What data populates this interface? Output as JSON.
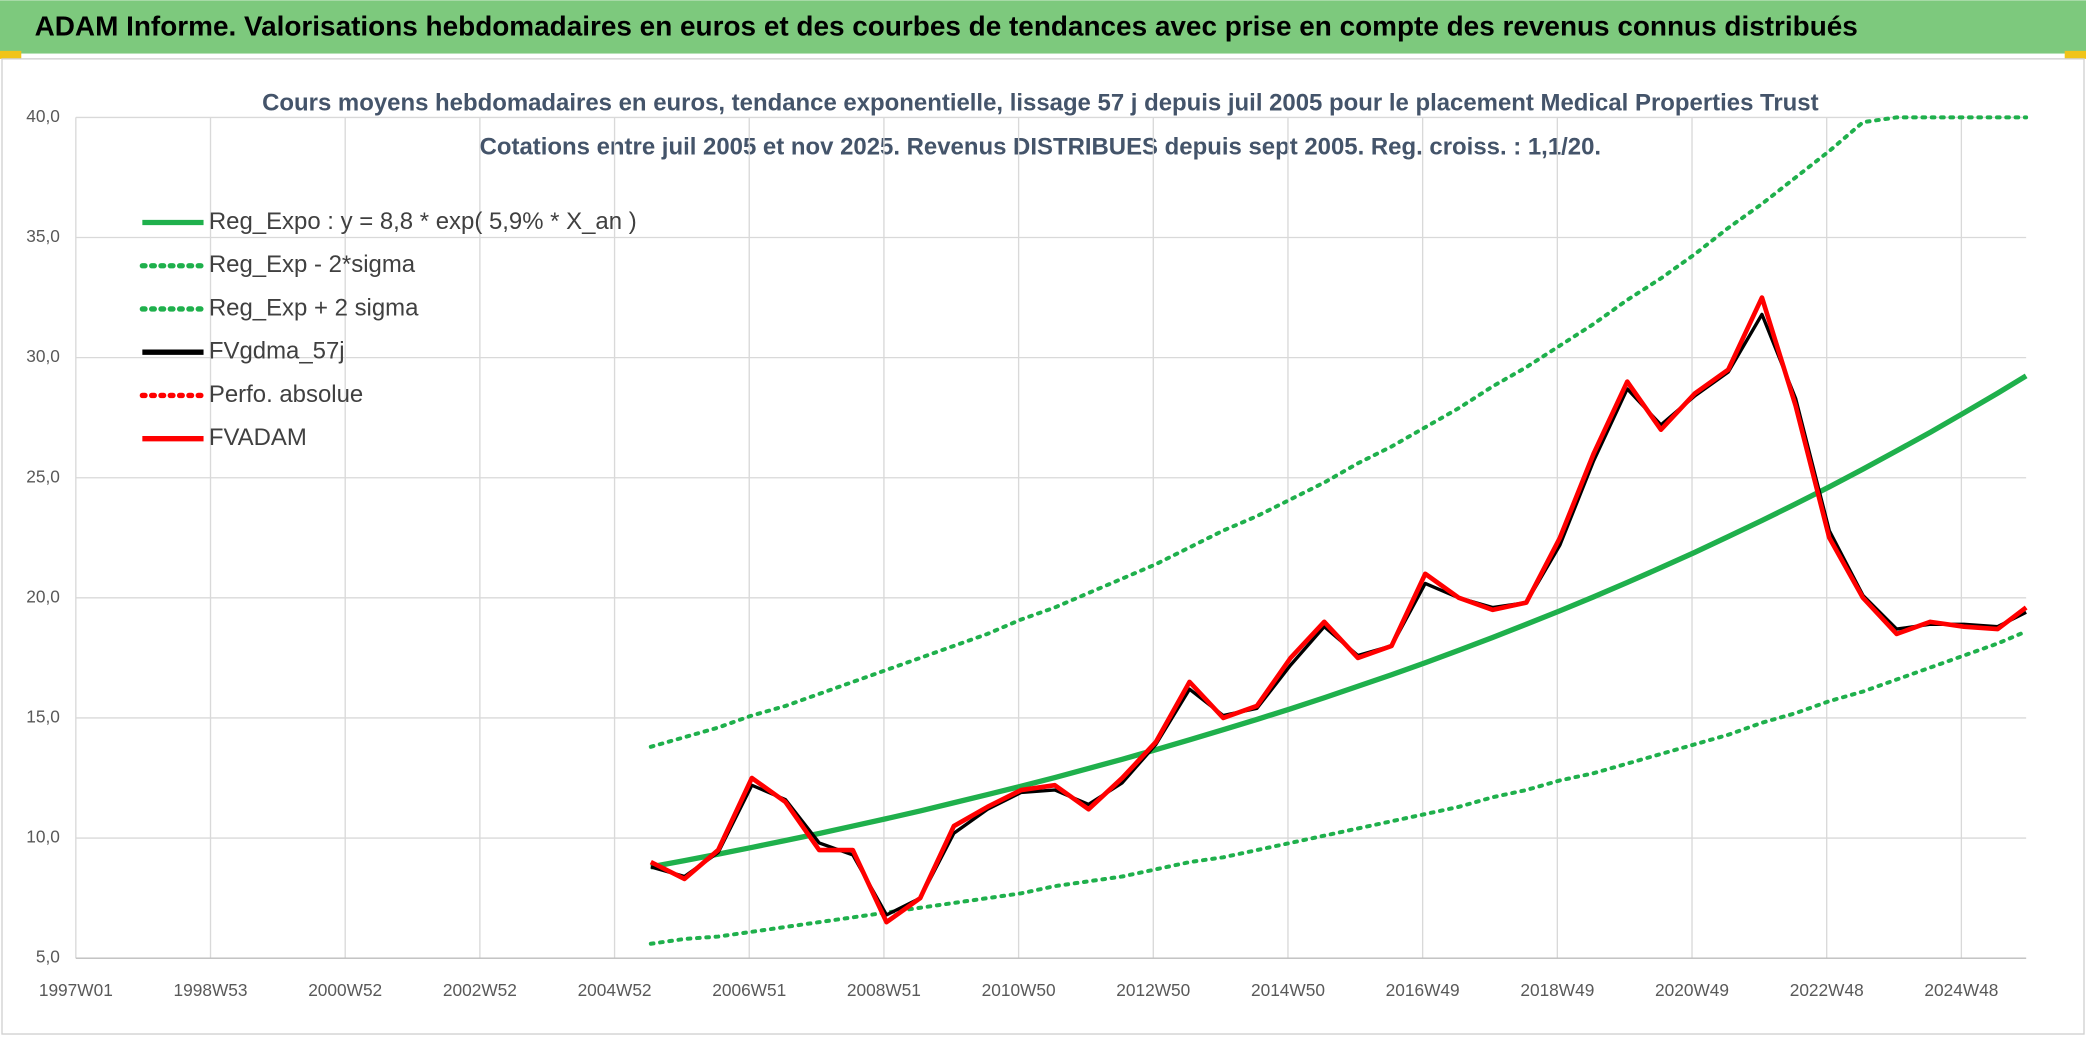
{
  "header": {
    "title": "ADAM Informe. Valorisations hebdomadaires en euros et des courbes de tendances avec prise en compte des revenus connus distribués"
  },
  "chart_data": {
    "type": "line",
    "title": "Cours moyens hebdomadaires en euros, tendance exponentielle, lissage 57 j depuis juil 2005 pour le placement Medical Properties Trust",
    "subtitle": "Cotations entre juil 2005 et nov 2025. Revenus DISTRIBUES depuis sept 2005. Reg. croiss. : 1,1/20.",
    "x": [
      444,
      470,
      496,
      522,
      548,
      574,
      600,
      626,
      652,
      678,
      704,
      730,
      756,
      782,
      808,
      834,
      860,
      886,
      912,
      938,
      964,
      990,
      1016,
      1042,
      1068,
      1094,
      1120,
      1146,
      1172,
      1198,
      1224,
      1250,
      1276,
      1302,
      1328,
      1354,
      1380,
      1406,
      1432,
      1458,
      1484,
      1506
    ],
    "xlim": [
      0,
      1506
    ],
    "xticks": [
      {
        "value": 0,
        "label": "1997W01"
      },
      {
        "value": 104,
        "label": "1998W53"
      },
      {
        "value": 208,
        "label": "2000W52"
      },
      {
        "value": 312,
        "label": "2002W52"
      },
      {
        "value": 416,
        "label": "2004W52"
      },
      {
        "value": 520,
        "label": "2006W51"
      },
      {
        "value": 624,
        "label": "2008W51"
      },
      {
        "value": 728,
        "label": "2010W50"
      },
      {
        "value": 832,
        "label": "2012W50"
      },
      {
        "value": 936,
        "label": "2014W50"
      },
      {
        "value": 1040,
        "label": "2016W49"
      },
      {
        "value": 1144,
        "label": "2018W49"
      },
      {
        "value": 1248,
        "label": "2020W49"
      },
      {
        "value": 1352,
        "label": "2022W48"
      },
      {
        "value": 1456,
        "label": "2024W48"
      }
    ],
    "ylim": [
      5,
      40
    ],
    "yticks": [
      {
        "value": 5,
        "label": "5,0"
      },
      {
        "value": 10,
        "label": "10,0"
      },
      {
        "value": 15,
        "label": "15,0"
      },
      {
        "value": 20,
        "label": "20,0"
      },
      {
        "value": 25,
        "label": "25,0"
      },
      {
        "value": 30,
        "label": "30,0"
      },
      {
        "value": 35,
        "label": "35,0"
      },
      {
        "value": 40,
        "label": "40,0"
      }
    ],
    "grid": true,
    "legend": "upper left",
    "series": [
      {
        "name": "Reg_Expo : y = 8,8 * exp( 5,9% *  X_an )",
        "color": "#1fb04c",
        "line_style": "solid",
        "values": [
          8.8,
          9.06,
          9.33,
          9.61,
          9.9,
          10.19,
          10.5,
          10.81,
          11.13,
          11.47,
          11.81,
          12.16,
          12.52,
          12.9,
          13.28,
          13.68,
          14.09,
          14.51,
          14.94,
          15.38,
          15.84,
          16.32,
          16.8,
          17.3,
          17.82,
          18.35,
          18.9,
          19.46,
          20.04,
          20.64,
          21.26,
          21.89,
          22.55,
          23.22,
          23.91,
          24.62,
          25.36,
          26.12,
          26.89,
          27.7,
          28.52,
          29.24
        ]
      },
      {
        "name": "Reg_Exp - 2*sigma",
        "color": "#1fb04c",
        "line_style": "dotted",
        "values": [
          5.6,
          5.8,
          5.9,
          6.1,
          6.3,
          6.5,
          6.7,
          6.9,
          7.1,
          7.3,
          7.5,
          7.7,
          8.0,
          8.2,
          8.4,
          8.7,
          9.0,
          9.2,
          9.5,
          9.8,
          10.1,
          10.4,
          10.7,
          11.0,
          11.3,
          11.7,
          12.0,
          12.4,
          12.7,
          13.1,
          13.5,
          13.9,
          14.3,
          14.8,
          15.2,
          15.7,
          16.1,
          16.6,
          17.1,
          17.6,
          18.1,
          18.6
        ]
      },
      {
        "name": "Reg_Exp + 2 sigma",
        "color": "#1fb04c",
        "line_style": "dotted",
        "values": [
          13.8,
          14.2,
          14.6,
          15.1,
          15.5,
          16.0,
          16.5,
          17.0,
          17.5,
          18.0,
          18.5,
          19.1,
          19.6,
          20.2,
          20.8,
          21.4,
          22.1,
          22.8,
          23.4,
          24.1,
          24.8,
          25.6,
          26.3,
          27.1,
          27.9,
          28.8,
          29.6,
          30.5,
          31.4,
          32.4,
          33.3,
          34.3,
          35.4,
          36.4,
          37.5,
          38.6,
          39.8,
          40,
          40,
          40,
          40,
          40
        ]
      },
      {
        "name": "FVgdma_57j",
        "color": "#000000",
        "line_style": "solid",
        "values": [
          8.8,
          8.4,
          9.4,
          12.2,
          11.6,
          9.8,
          9.3,
          6.8,
          7.5,
          10.2,
          11.2,
          11.9,
          12.0,
          11.4,
          12.3,
          13.9,
          16.2,
          15.1,
          15.4,
          17.2,
          18.8,
          17.6,
          18.0,
          20.6,
          20.0,
          19.6,
          19.8,
          22.2,
          25.7,
          28.7,
          27.2,
          28.4,
          29.4,
          31.8,
          28.3,
          22.8,
          20.1,
          18.7,
          18.9,
          18.9,
          18.8,
          19.4
        ]
      },
      {
        "name": "Perfo. absolue",
        "color": "#ff0000",
        "line_style": "dotted",
        "values": [
          null,
          null,
          null,
          null,
          null,
          null,
          null,
          null,
          null,
          null,
          null,
          null,
          null,
          null,
          null,
          null,
          null,
          null,
          null,
          null,
          null,
          null,
          null,
          null,
          null,
          null,
          null,
          null,
          null,
          null,
          null,
          null,
          null,
          null,
          null,
          null,
          null,
          null,
          null,
          null,
          null,
          null
        ]
      },
      {
        "name": "FVADAM",
        "color": "#ff0000",
        "line_style": "solid",
        "values": [
          9.0,
          8.3,
          9.5,
          12.5,
          11.5,
          9.5,
          9.5,
          6.5,
          7.5,
          10.5,
          11.3,
          12.0,
          12.2,
          11.2,
          12.5,
          14.0,
          16.5,
          15.0,
          15.5,
          17.5,
          19.0,
          17.5,
          18.0,
          21.0,
          20.0,
          19.5,
          19.8,
          22.5,
          26.0,
          29.0,
          27.0,
          28.5,
          29.5,
          32.5,
          28.0,
          22.5,
          20.0,
          18.5,
          19.0,
          18.8,
          18.7,
          19.6
        ]
      }
    ]
  }
}
